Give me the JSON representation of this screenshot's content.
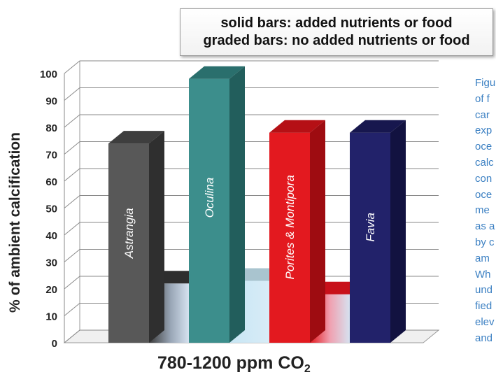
{
  "legend": {
    "line1": "solid bars: added nutrients or food",
    "line2": "graded bars: no added nutrients or food"
  },
  "side_text_fragments": [
    "Figu",
    "of f",
    "car",
    "exp",
    "oce",
    "calc",
    "con",
    "oce",
    "me",
    "as a",
    "by c",
    "am",
    "Wh",
    "und",
    "fied",
    "elev",
    "and"
  ],
  "colors": {
    "astrangia": "#585858",
    "oculina": "#3c8e8c",
    "porites": "#e3191f",
    "favia": "#22226a",
    "caption_blue": "#3a7fc2"
  },
  "chart_data": {
    "type": "bar",
    "title": "",
    "ylabel": "% of ambient calcification",
    "xlabel_main": "780-1200 ppm CO",
    "xlabel_sub": "2",
    "ylim": [
      0,
      100
    ],
    "yticks": [
      0,
      10,
      20,
      30,
      40,
      50,
      60,
      70,
      80,
      90,
      100
    ],
    "categories": [
      "Astrangia",
      "Oculina",
      "Porites & Montipora",
      "Favia"
    ],
    "series": [
      {
        "name": "solid bars: added nutrients or food",
        "values": [
          74,
          98,
          78,
          78
        ]
      },
      {
        "name": "graded bars: no added nutrients or food",
        "values": [
          22,
          23,
          18,
          null
        ]
      }
    ],
    "grid": true,
    "legend_position": "top-right"
  }
}
